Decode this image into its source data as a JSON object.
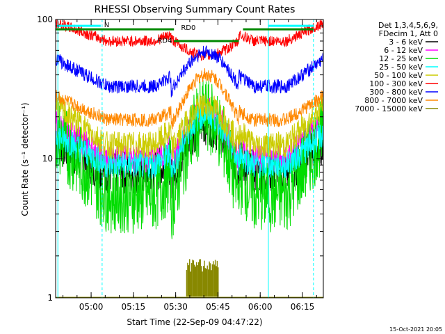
{
  "chart_data": {
    "type": "line",
    "title": "RHESSI Observing Summary Count Rates",
    "xlabel": "Start Time (22-Sep-09 04:47:22)",
    "ylabel": "Count Rate (s⁻¹ detector⁻¹)",
    "yscale": "log",
    "ylim": [
      1,
      100
    ],
    "xlim_minutes": [
      0,
      95
    ],
    "x_ticks": [
      {
        "label": "05:00",
        "minutes": 12.6
      },
      {
        "label": "05:15",
        "minutes": 27.6
      },
      {
        "label": "05:30",
        "minutes": 42.6
      },
      {
        "label": "05:45",
        "minutes": 57.6
      },
      {
        "label": "06:00",
        "minutes": 72.6
      },
      {
        "label": "06:15",
        "minutes": 87.6
      }
    ],
    "y_ticks": [
      {
        "label": "1",
        "value": 1
      },
      {
        "label": "10",
        "value": 10
      },
      {
        "label": "100",
        "value": 100
      }
    ],
    "legend_header": [
      "Det 1,3,4,5,6,9,",
      "FDecim 1, Att 0"
    ],
    "series": [
      {
        "name": "3 - 6 keV",
        "color": "#000000",
        "min_rate": 8,
        "edge_rate": 13,
        "peak_rate": 18,
        "noise": 0.16
      },
      {
        "name": "6 - 12 keV",
        "color": "#ff00ff",
        "min_rate": 10,
        "edge_rate": 18,
        "peak_rate": 22,
        "noise": 0.1
      },
      {
        "name": "12 - 25 keV",
        "color": "#00dd00",
        "min_rate": 5.5,
        "edge_rate": 15,
        "peak_rate": 20,
        "noise": 0.28
      },
      {
        "name": "25 - 50 keV",
        "color": "#00ffff",
        "min_rate": 9,
        "edge_rate": 15,
        "peak_rate": 21,
        "noise": 0.1
      },
      {
        "name": "50 - 100 keV",
        "color": "#cccc00",
        "min_rate": 12.5,
        "edge_rate": 24,
        "peak_rate": 24,
        "noise": 0.1
      },
      {
        "name": "100 - 300 keV",
        "color": "#ff0000",
        "min_rate": 70,
        "edge_rate": 95,
        "peak_rate": 55,
        "noise": 0.04
      },
      {
        "name": "300 - 800 keV",
        "color": "#0000ff",
        "min_rate": 33,
        "edge_rate": 52,
        "peak_rate": 58,
        "noise": 0.05
      },
      {
        "name": "800 - 7000 keV",
        "color": "#ff8800",
        "min_rate": 19,
        "edge_rate": 28,
        "peak_rate": 40,
        "noise": 0.05
      },
      {
        "name": "7000 - 15000 keV",
        "color": "#888800",
        "min_rate": 1,
        "edge_rate": 1,
        "peak_rate": 1,
        "noise": 0
      }
    ],
    "annotations": [
      {
        "text": "N",
        "color": "#00ffff"
      },
      {
        "text": "RD4",
        "color": "#008800"
      },
      {
        "text": "RD0",
        "color": "#008800"
      }
    ],
    "spike_burst": {
      "label": "7000 - 15000 keV bursts",
      "start_minutes": 46.5,
      "end_minutes": 58,
      "top_rate": 1.9,
      "color": "#888800"
    }
  },
  "footer": {
    "date": "15-Oct-2021 20:05"
  }
}
